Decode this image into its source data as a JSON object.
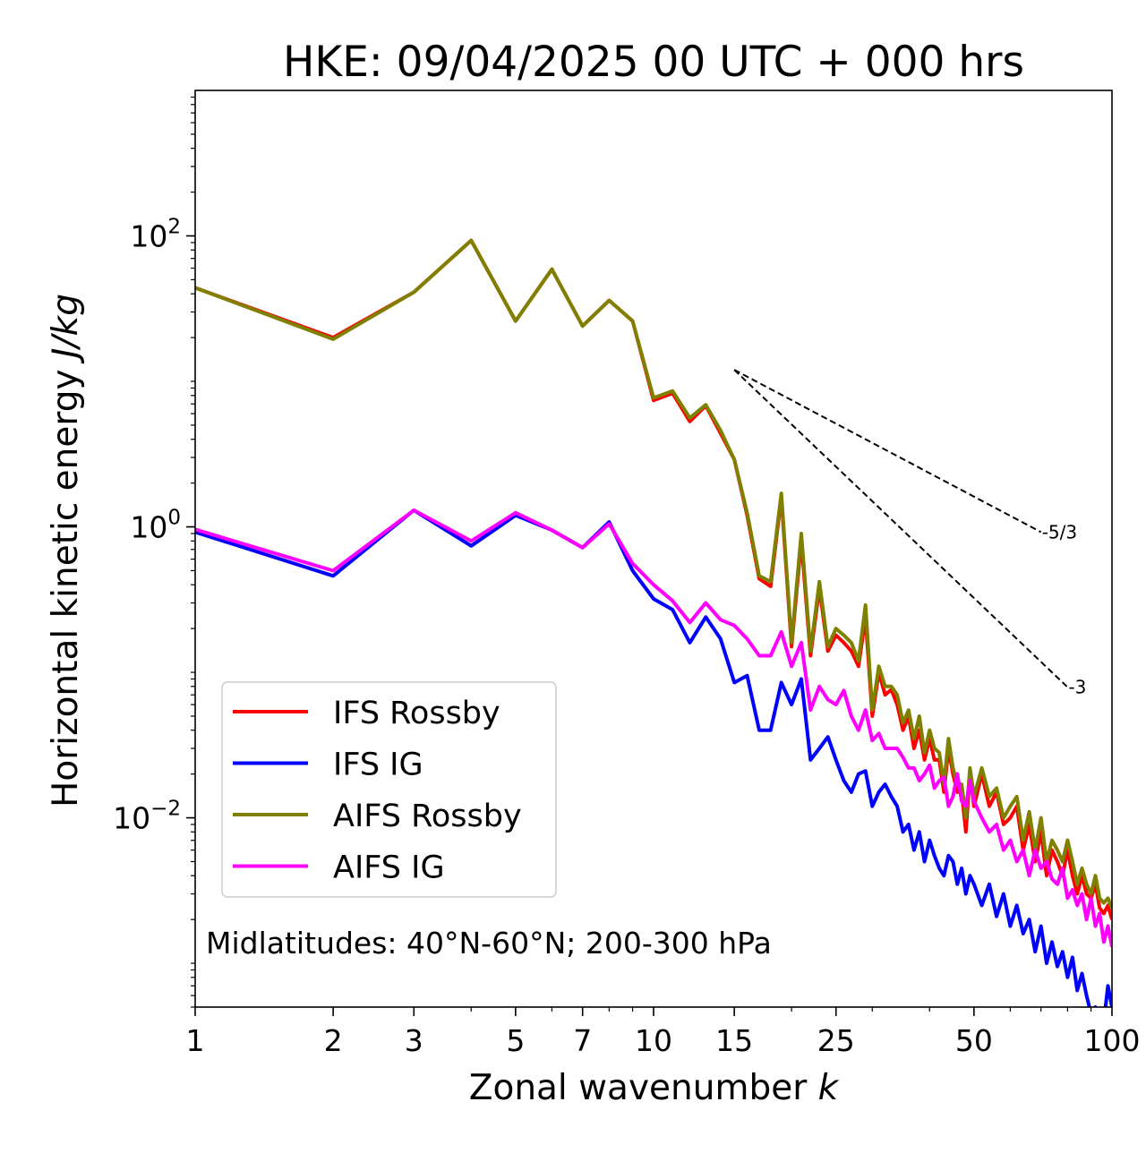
{
  "chart_data": {
    "type": "line",
    "title": "HKE: 09/04/2025 00 UTC + 000 hrs",
    "xlabel": "Zonal wavenumber",
    "xlabel_italic": "k",
    "ylabel": "Horizontal kinetic energy",
    "ylabel_italic": "J/kg",
    "xscale": "log",
    "yscale": "log",
    "xlim": [
      1,
      100
    ],
    "ylim": [
      0.0005,
      1000
    ],
    "xticks": [
      1,
      2,
      3,
      5,
      7,
      10,
      15,
      25,
      50,
      100
    ],
    "xtick_labels": [
      "1",
      "2",
      "3",
      "5",
      "7",
      "10",
      "15",
      "25",
      "50",
      "100"
    ],
    "yticks": [
      {
        "value": 100,
        "base": "10",
        "exp": "2"
      },
      {
        "value": 1,
        "base": "10",
        "exp": "0"
      },
      {
        "value": 0.01,
        "base": "10",
        "exp": "−2"
      }
    ],
    "grid": false,
    "legend_position": "lower-left",
    "annotation": "Midlatitudes: 40°N-60°N; 200-300 hPa",
    "reference_lines": [
      {
        "label": "-5/3",
        "slope": -1.6667,
        "x": [
          15,
          70
        ],
        "y0": 12
      },
      {
        "label": "-3",
        "slope": -3,
        "x": [
          15,
          80
        ],
        "y0": 12
      }
    ],
    "series": [
      {
        "name": "IFS Rossby",
        "color": "#ff0000",
        "x": [
          1,
          2,
          3,
          4,
          5,
          6,
          7,
          8,
          9,
          10,
          11,
          12,
          13,
          14,
          15,
          16,
          17,
          18,
          19,
          20,
          21,
          22,
          23,
          24,
          25,
          26,
          27,
          28,
          29,
          30,
          31,
          32,
          33,
          34,
          35,
          36,
          37,
          38,
          39,
          40,
          41,
          42,
          43,
          44,
          45,
          46,
          47,
          48,
          49,
          50,
          52,
          54,
          56,
          58,
          60,
          62,
          64,
          66,
          68,
          70,
          72,
          74,
          76,
          78,
          80,
          82,
          84,
          86,
          88,
          90,
          92,
          94,
          96,
          98,
          100
        ],
        "y": [
          44,
          20,
          41,
          93,
          26,
          59,
          24,
          36,
          26,
          7.4,
          8.3,
          5.3,
          6.8,
          4.4,
          2.9,
          1.2,
          0.44,
          0.39,
          1.6,
          0.15,
          0.8,
          0.13,
          0.38,
          0.14,
          0.18,
          0.16,
          0.14,
          0.11,
          0.24,
          0.05,
          0.1,
          0.07,
          0.076,
          0.06,
          0.04,
          0.05,
          0.03,
          0.04,
          0.025,
          0.035,
          0.025,
          0.025,
          0.015,
          0.03,
          0.02,
          0.015,
          0.015,
          0.008,
          0.02,
          0.012,
          0.02,
          0.012,
          0.015,
          0.009,
          0.01,
          0.012,
          0.006,
          0.009,
          0.005,
          0.008,
          0.004,
          0.006,
          0.005,
          0.004,
          0.006,
          0.004,
          0.003,
          0.004,
          0.003,
          0.0028,
          0.0035,
          0.0024,
          0.0022,
          0.0025,
          0.002
        ]
      },
      {
        "name": "IFS IG",
        "color": "#0000ff",
        "x": [
          1,
          2,
          3,
          4,
          5,
          6,
          7,
          8,
          9,
          10,
          11,
          12,
          13,
          14,
          15,
          16,
          17,
          18,
          19,
          20,
          21,
          22,
          23,
          24,
          25,
          26,
          27,
          28,
          29,
          30,
          31,
          32,
          33,
          34,
          35,
          36,
          37,
          38,
          39,
          40,
          41,
          42,
          43,
          44,
          45,
          46,
          47,
          48,
          49,
          50,
          52,
          54,
          56,
          58,
          60,
          62,
          64,
          66,
          68,
          70,
          72,
          74,
          76,
          78,
          80,
          82,
          84,
          86,
          88,
          90,
          92,
          94,
          96,
          98,
          100
        ],
        "y": [
          0.92,
          0.46,
          1.3,
          0.74,
          1.2,
          0.95,
          0.72,
          1.08,
          0.5,
          0.32,
          0.27,
          0.16,
          0.24,
          0.17,
          0.085,
          0.095,
          0.04,
          0.04,
          0.085,
          0.06,
          0.09,
          0.025,
          0.03,
          0.036,
          0.025,
          0.018,
          0.015,
          0.02,
          0.021,
          0.012,
          0.015,
          0.017,
          0.014,
          0.012,
          0.008,
          0.009,
          0.006,
          0.008,
          0.005,
          0.007,
          0.0055,
          0.0045,
          0.004,
          0.0055,
          0.005,
          0.0035,
          0.0045,
          0.003,
          0.004,
          0.0035,
          0.0025,
          0.0035,
          0.0021,
          0.003,
          0.0018,
          0.0025,
          0.0016,
          0.002,
          0.0012,
          0.0018,
          0.001,
          0.0014,
          0.00095,
          0.0012,
          0.0008,
          0.0011,
          0.00065,
          0.00085,
          0.0006,
          0.00045,
          0.0005,
          0.00035,
          0.0004,
          0.0007,
          0.0005
        ]
      },
      {
        "name": "AIFS Rossby",
        "color": "#808000",
        "x": [
          1,
          2,
          3,
          4,
          5,
          6,
          7,
          8,
          9,
          10,
          11,
          12,
          13,
          14,
          15,
          16,
          17,
          18,
          19,
          20,
          21,
          22,
          23,
          24,
          25,
          26,
          27,
          28,
          29,
          30,
          31,
          32,
          33,
          34,
          35,
          36,
          37,
          38,
          39,
          40,
          41,
          42,
          43,
          44,
          45,
          46,
          47,
          48,
          49,
          50,
          52,
          54,
          56,
          58,
          60,
          62,
          64,
          66,
          68,
          70,
          72,
          74,
          76,
          78,
          80,
          82,
          84,
          86,
          88,
          90,
          92,
          94,
          96,
          98,
          100
        ],
        "y": [
          44,
          19.5,
          41,
          93,
          26,
          59,
          24,
          36,
          26,
          7.7,
          8.6,
          5.6,
          6.9,
          4.6,
          2.9,
          1.25,
          0.46,
          0.42,
          1.7,
          0.16,
          0.9,
          0.14,
          0.42,
          0.15,
          0.2,
          0.18,
          0.16,
          0.12,
          0.29,
          0.055,
          0.11,
          0.08,
          0.08,
          0.07,
          0.045,
          0.055,
          0.035,
          0.05,
          0.028,
          0.04,
          0.03,
          0.028,
          0.017,
          0.035,
          0.022,
          0.017,
          0.017,
          0.01,
          0.022,
          0.014,
          0.022,
          0.014,
          0.016,
          0.01,
          0.012,
          0.014,
          0.007,
          0.011,
          0.006,
          0.01,
          0.005,
          0.007,
          0.006,
          0.005,
          0.007,
          0.005,
          0.0035,
          0.0045,
          0.0035,
          0.003,
          0.004,
          0.0028,
          0.0026,
          0.0028,
          0.0024
        ]
      },
      {
        "name": "AIFS IG",
        "color": "#ff00ff",
        "x": [
          1,
          2,
          3,
          4,
          5,
          6,
          7,
          8,
          9,
          10,
          11,
          12,
          13,
          14,
          15,
          16,
          17,
          18,
          19,
          20,
          21,
          22,
          23,
          24,
          25,
          26,
          27,
          28,
          29,
          30,
          31,
          32,
          33,
          34,
          35,
          36,
          37,
          38,
          39,
          40,
          41,
          42,
          43,
          44,
          45,
          46,
          47,
          48,
          49,
          50,
          52,
          54,
          56,
          58,
          60,
          62,
          64,
          66,
          68,
          70,
          72,
          74,
          76,
          78,
          80,
          82,
          84,
          86,
          88,
          90,
          92,
          94,
          96,
          98,
          100
        ],
        "y": [
          0.96,
          0.5,
          1.3,
          0.8,
          1.25,
          0.95,
          0.72,
          1.05,
          0.56,
          0.4,
          0.31,
          0.22,
          0.3,
          0.23,
          0.21,
          0.17,
          0.13,
          0.13,
          0.19,
          0.11,
          0.16,
          0.055,
          0.08,
          0.065,
          0.06,
          0.075,
          0.05,
          0.04,
          0.055,
          0.034,
          0.038,
          0.03,
          0.03,
          0.03,
          0.026,
          0.022,
          0.022,
          0.018,
          0.02,
          0.023,
          0.016,
          0.018,
          0.019,
          0.012,
          0.014,
          0.02,
          0.013,
          0.012,
          0.018,
          0.013,
          0.01,
          0.008,
          0.009,
          0.006,
          0.007,
          0.005,
          0.006,
          0.004,
          0.006,
          0.0045,
          0.005,
          0.0038,
          0.0035,
          0.0045,
          0.0028,
          0.0032,
          0.0025,
          0.003,
          0.002,
          0.0028,
          0.0018,
          0.0022,
          0.0014,
          0.0018,
          0.0013
        ]
      }
    ]
  }
}
